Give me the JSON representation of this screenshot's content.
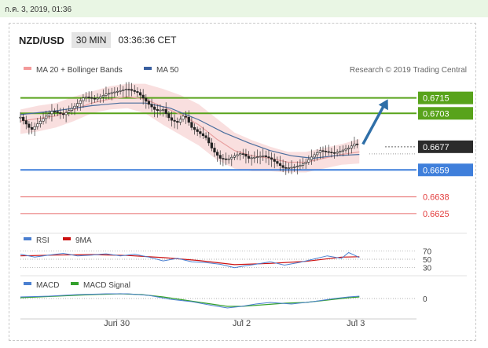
{
  "timestamp": "ก.ค. 3, 2019, 01:36",
  "header": {
    "pair": "NZD/USD",
    "timeframe": "30 MIN",
    "time": "03:36:36 CET"
  },
  "colors": {
    "green": "#58a31b",
    "blue": "#3f7fdb",
    "red": "#e66a6a",
    "current": "#2b2b2b",
    "arrow": "#2f6fa8",
    "band": "#f8d9d9",
    "ma20": "#e8a0a0",
    "ma50": "#4a6e9e"
  },
  "chart_data": [
    {
      "type": "line",
      "panel": "price",
      "legend": [
        {
          "label": "MA 20 + Bollinger Bands",
          "color": "#f39a9a"
        },
        {
          "label": "MA 50",
          "color": "#3a5fa0"
        }
      ],
      "credit": "Research © 2019 Trading Central",
      "ylim": [
        0.6617,
        0.6727
      ],
      "xlim": [
        0,
        100
      ],
      "x_ticks": [
        {
          "x": 27,
          "label": "Jun 30"
        },
        {
          "x": 62,
          "label": "Jul 2"
        },
        {
          "x": 94,
          "label": "Jul 3"
        }
      ],
      "levels": [
        {
          "value": 0.6715,
          "label": "0.6715",
          "kind": "resistance"
        },
        {
          "value": 0.6703,
          "label": "0.6703",
          "kind": "resistance"
        },
        {
          "value": 0.6677,
          "label": "0.6677",
          "kind": "current"
        },
        {
          "value": 0.6659,
          "label": "0.6659",
          "kind": "pivot"
        },
        {
          "value": 0.6638,
          "label": "0.6638",
          "kind": "support"
        },
        {
          "value": 0.6625,
          "label": "0.6625",
          "kind": "support"
        }
      ],
      "close": [
        [
          0,
          0.67
        ],
        [
          3,
          0.669
        ],
        [
          6,
          0.6698
        ],
        [
          9,
          0.6705
        ],
        [
          12,
          0.6702
        ],
        [
          15,
          0.6708
        ],
        [
          18,
          0.6716
        ],
        [
          21,
          0.6714
        ],
        [
          24,
          0.6718
        ],
        [
          27,
          0.672
        ],
        [
          30,
          0.6722
        ],
        [
          33,
          0.6719
        ],
        [
          36,
          0.671
        ],
        [
          38,
          0.6705
        ],
        [
          40,
          0.6706
        ],
        [
          42,
          0.6698
        ],
        [
          44,
          0.6696
        ],
        [
          46,
          0.6702
        ],
        [
          48,
          0.6692
        ],
        [
          50,
          0.6688
        ],
        [
          52,
          0.6684
        ],
        [
          54,
          0.6674
        ],
        [
          56,
          0.6668
        ],
        [
          58,
          0.6667
        ],
        [
          60,
          0.667
        ],
        [
          62,
          0.6672
        ],
        [
          64,
          0.6668
        ],
        [
          66,
          0.6669
        ],
        [
          68,
          0.667
        ],
        [
          70,
          0.6668
        ],
        [
          72,
          0.6664
        ],
        [
          74,
          0.666
        ],
        [
          76,
          0.6661
        ],
        [
          78,
          0.6662
        ],
        [
          80,
          0.6665
        ],
        [
          82,
          0.667
        ],
        [
          84,
          0.6674
        ],
        [
          86,
          0.6673
        ],
        [
          88,
          0.6672
        ],
        [
          90,
          0.6674
        ],
        [
          92,
          0.6676
        ],
        [
          94,
          0.668
        ],
        [
          95,
          0.6677
        ]
      ],
      "ma20": [
        [
          0,
          0.6697
        ],
        [
          5,
          0.6699
        ],
        [
          10,
          0.6701
        ],
        [
          15,
          0.6706
        ],
        [
          20,
          0.6711
        ],
        [
          25,
          0.6714
        ],
        [
          30,
          0.6716
        ],
        [
          35,
          0.6714
        ],
        [
          40,
          0.6708
        ],
        [
          45,
          0.6702
        ],
        [
          50,
          0.6694
        ],
        [
          55,
          0.6683
        ],
        [
          60,
          0.6674
        ],
        [
          65,
          0.667
        ],
        [
          70,
          0.6668
        ],
        [
          75,
          0.6665
        ],
        [
          80,
          0.6665
        ],
        [
          85,
          0.6668
        ],
        [
          90,
          0.6671
        ],
        [
          95,
          0.6673
        ]
      ],
      "band_upper": [
        [
          0,
          0.6706
        ],
        [
          5,
          0.6709
        ],
        [
          10,
          0.6711
        ],
        [
          15,
          0.6716
        ],
        [
          20,
          0.672
        ],
        [
          25,
          0.6724
        ],
        [
          30,
          0.6726
        ],
        [
          35,
          0.6726
        ],
        [
          40,
          0.6722
        ],
        [
          45,
          0.6717
        ],
        [
          50,
          0.671
        ],
        [
          55,
          0.6699
        ],
        [
          60,
          0.6688
        ],
        [
          65,
          0.6682
        ],
        [
          70,
          0.6677
        ],
        [
          75,
          0.6673
        ],
        [
          80,
          0.6673
        ],
        [
          85,
          0.6676
        ],
        [
          90,
          0.6679
        ],
        [
          95,
          0.6683
        ]
      ],
      "band_lower": [
        [
          0,
          0.6687
        ],
        [
          5,
          0.6689
        ],
        [
          10,
          0.6692
        ],
        [
          15,
          0.6697
        ],
        [
          20,
          0.6703
        ],
        [
          25,
          0.6706
        ],
        [
          30,
          0.6707
        ],
        [
          35,
          0.6703
        ],
        [
          40,
          0.6694
        ],
        [
          45,
          0.6686
        ],
        [
          50,
          0.6678
        ],
        [
          55,
          0.6667
        ],
        [
          60,
          0.666
        ],
        [
          65,
          0.6658
        ],
        [
          70,
          0.6658
        ],
        [
          75,
          0.6657
        ],
        [
          80,
          0.6657
        ],
        [
          85,
          0.666
        ],
        [
          90,
          0.6663
        ],
        [
          95,
          0.6664
        ]
      ],
      "ma50": [
        [
          0,
          0.6702
        ],
        [
          10,
          0.6705
        ],
        [
          20,
          0.6709
        ],
        [
          28,
          0.6711
        ],
        [
          35,
          0.6711
        ],
        [
          42,
          0.6707
        ],
        [
          50,
          0.6698
        ],
        [
          57,
          0.6688
        ],
        [
          64,
          0.668
        ],
        [
          70,
          0.6674
        ],
        [
          76,
          0.667
        ],
        [
          82,
          0.6668
        ],
        [
          88,
          0.667
        ],
        [
          95,
          0.6671
        ]
      ],
      "forecast_arrow": {
        "from": [
          96,
          0.6679
        ],
        "to": [
          103,
          0.6714
        ]
      }
    },
    {
      "type": "line",
      "panel": "rsi",
      "legend": [
        {
          "label": "RSI",
          "color": "#4a7fd0"
        },
        {
          "label": "9MA",
          "color": "#cc1111"
        }
      ],
      "ylim": [
        20,
        80
      ],
      "y_ticks": [
        {
          "value": 70,
          "label": "70"
        },
        {
          "value": 50,
          "label": "50"
        },
        {
          "value": 30,
          "label": "30"
        }
      ],
      "series": [
        {
          "name": "RSI",
          "values": [
            [
              0,
              62
            ],
            [
              4,
              55
            ],
            [
              8,
              60
            ],
            [
              12,
              64
            ],
            [
              16,
              58
            ],
            [
              20,
              60
            ],
            [
              24,
              63
            ],
            [
              28,
              58
            ],
            [
              32,
              62
            ],
            [
              36,
              55
            ],
            [
              40,
              46
            ],
            [
              44,
              52
            ],
            [
              48,
              44
            ],
            [
              52,
              42
            ],
            [
              56,
              38
            ],
            [
              60,
              30
            ],
            [
              62,
              33
            ],
            [
              66,
              38
            ],
            [
              70,
              44
            ],
            [
              74,
              36
            ],
            [
              78,
              42
            ],
            [
              82,
              50
            ],
            [
              86,
              58
            ],
            [
              90,
              52
            ],
            [
              92,
              66
            ],
            [
              94,
              58
            ],
            [
              95,
              54
            ]
          ]
        },
        {
          "name": "9MA",
          "values": [
            [
              0,
              58
            ],
            [
              10,
              60
            ],
            [
              20,
              61
            ],
            [
              30,
              59
            ],
            [
              40,
              54
            ],
            [
              50,
              47
            ],
            [
              60,
              37
            ],
            [
              70,
              40
            ],
            [
              80,
              45
            ],
            [
              90,
              55
            ],
            [
              95,
              56
            ]
          ]
        }
      ]
    },
    {
      "type": "line",
      "panel": "macd",
      "legend": [
        {
          "label": "MACD",
          "color": "#4a7fd0"
        },
        {
          "label": "MACD Signal",
          "color": "#33a02c"
        }
      ],
      "ylim": [
        -0.0018,
        0.0012
      ],
      "y_ticks": [
        {
          "value": 0,
          "label": "0"
        }
      ],
      "series": [
        {
          "name": "MACD",
          "values": [
            [
              0,
              0.0002
            ],
            [
              8,
              0.0003
            ],
            [
              16,
              0.0005
            ],
            [
              24,
              0.0006
            ],
            [
              30,
              0.0006
            ],
            [
              36,
              0.0004
            ],
            [
              42,
              -0.0001
            ],
            [
              48,
              -0.0004
            ],
            [
              54,
              -0.0009
            ],
            [
              58,
              -0.0012
            ],
            [
              62,
              -0.001
            ],
            [
              66,
              -0.0007
            ],
            [
              70,
              -0.0005
            ],
            [
              76,
              -0.0007
            ],
            [
              82,
              -0.0004
            ],
            [
              88,
              0.0
            ],
            [
              92,
              0.0002
            ],
            [
              95,
              0.0003
            ]
          ]
        },
        {
          "name": "MACD Signal",
          "values": [
            [
              0,
              0.0001
            ],
            [
              10,
              0.0003
            ],
            [
              20,
              0.0005
            ],
            [
              28,
              0.0006
            ],
            [
              34,
              0.0005
            ],
            [
              40,
              0.0002
            ],
            [
              46,
              -0.0002
            ],
            [
              52,
              -0.0006
            ],
            [
              58,
              -0.001
            ],
            [
              62,
              -0.001
            ],
            [
              68,
              -0.0008
            ],
            [
              74,
              -0.0006
            ],
            [
              80,
              -0.0005
            ],
            [
              86,
              -0.0002
            ],
            [
              92,
              0.0001
            ],
            [
              95,
              0.0002
            ]
          ]
        }
      ]
    }
  ]
}
